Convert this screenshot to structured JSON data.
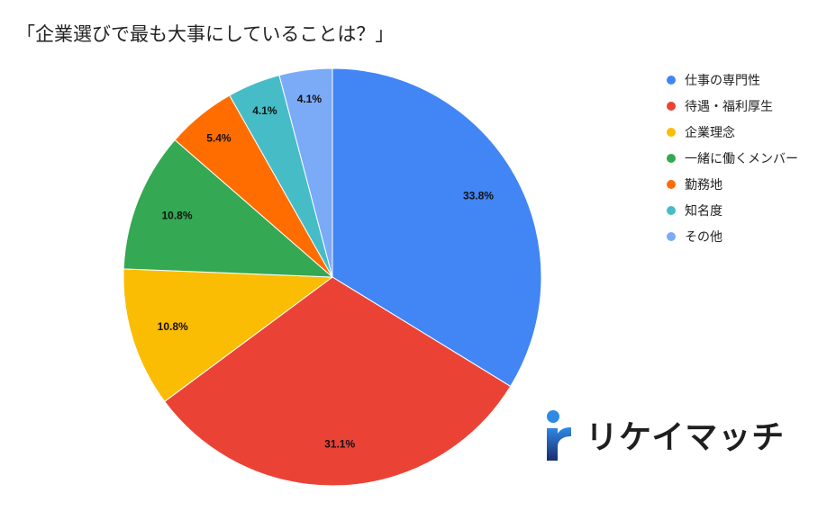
{
  "chart_data": {
    "type": "pie",
    "title": "「企業選びで最も大事にしていることは？」",
    "legend_position": "right",
    "slices": [
      {
        "name": "仕事の専門性",
        "value": 33.8,
        "label": "33.8%",
        "color": "#4285f4"
      },
      {
        "name": "待遇・福利厚生",
        "value": 31.1,
        "label": "31.1%",
        "color": "#ea4335"
      },
      {
        "name": "企業理念",
        "value": 10.8,
        "label": "10.8%",
        "color": "#fbbc04"
      },
      {
        "name": "一緒に働くメンバー",
        "value": 10.8,
        "label": "10.8%",
        "color": "#34a853"
      },
      {
        "name": "勤務地",
        "value": 5.4,
        "label": "5.4%",
        "color": "#ff6d01"
      },
      {
        "name": "知名度",
        "value": 4.1,
        "label": "4.1%",
        "color": "#46bdc6"
      },
      {
        "name": "その他",
        "value": 4.1,
        "label": "4.1%",
        "color": "#7baaf7"
      }
    ]
  },
  "brand": {
    "name": "リケイマッチ",
    "logo_icon": "r-logo-icon",
    "logo_colors": [
      "#2f8ae5",
      "#1a2b6e"
    ]
  }
}
